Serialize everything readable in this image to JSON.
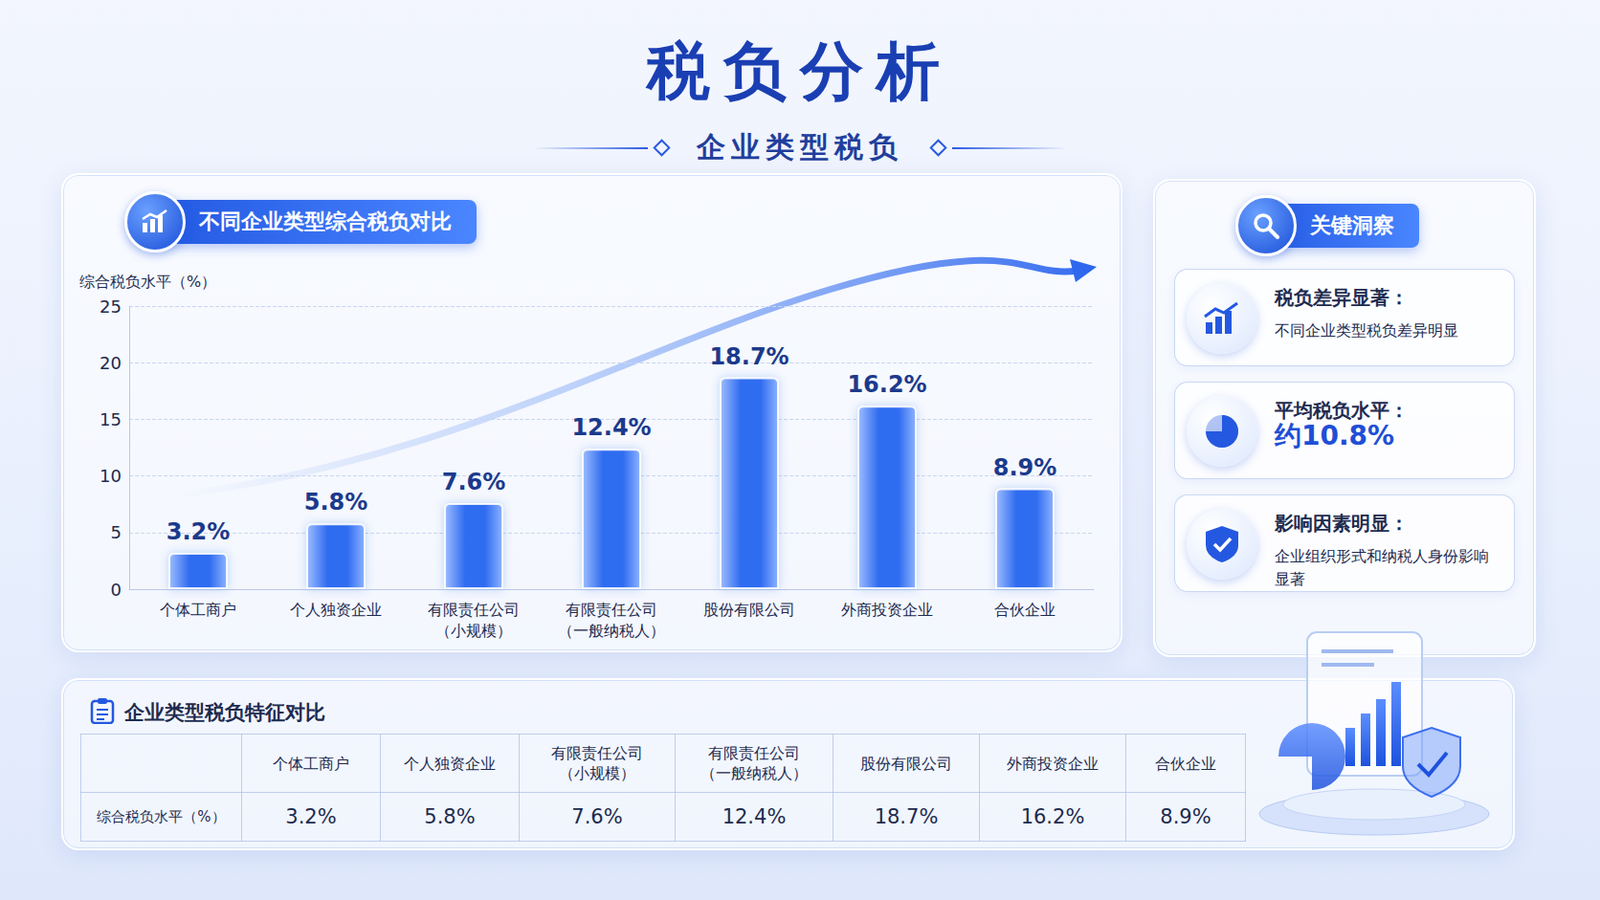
{
  "title": "税负分析",
  "subtitle": "企业类型税负",
  "chart_panel": {
    "title": "不同企业类型综合税负对比"
  },
  "chart_data": {
    "type": "bar",
    "y_label": "综合税负水平（%）",
    "categories": [
      "个体工商户",
      "个人独资企业",
      "有限责任公司（小规模）",
      "有限责任公司（一般纳税人）",
      "股份有限公司",
      "外商投资企业",
      "合伙企业"
    ],
    "values": [
      3.2,
      5.8,
      7.6,
      12.4,
      18.7,
      16.2,
      8.9
    ],
    "value_labels": [
      "3.2%",
      "5.8%",
      "7.6%",
      "12.4%",
      "18.7%",
      "16.2%",
      "8.9%"
    ],
    "color": "#2f6cf0",
    "ylim": [
      0,
      25
    ],
    "yticks": [
      0,
      5,
      10,
      15,
      20,
      25
    ],
    "grid": true,
    "data_labels": true
  },
  "insights": {
    "title": "关键洞察",
    "items": [
      {
        "heading": "税负差异显著：",
        "text": "不同企业类型税负差异明显"
      },
      {
        "heading": "平均税负水平：",
        "text": "约10.8%"
      },
      {
        "heading": "影响因素明显：",
        "text": "企业组织形式和纳税人身份影响显著"
      }
    ]
  },
  "table": {
    "title": "企业类型税负特征对比",
    "header": [
      "个体工商户",
      "个人独资企业",
      "有限责任公司（小规模）",
      "有限责任公司（一般纳税人）",
      "股份有限公司",
      "外商投资企业",
      "合伙企业"
    ],
    "rows": [
      {
        "label": "综合税负水平（%）",
        "cells": [
          "3.2%",
          "5.8%",
          "7.6%",
          "12.4%",
          "18.7%",
          "16.2%",
          "8.9%"
        ]
      }
    ]
  }
}
